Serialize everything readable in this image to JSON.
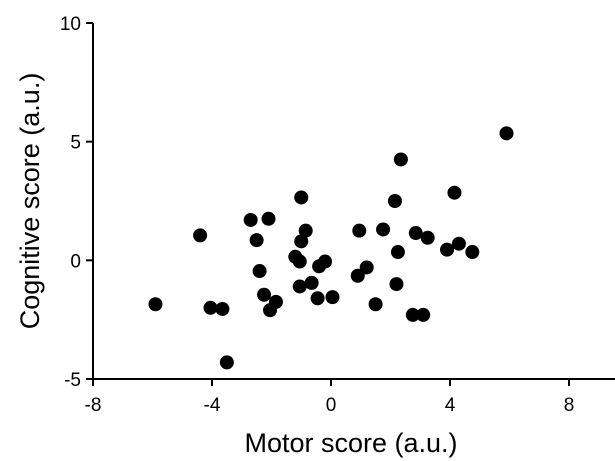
{
  "chart_data": {
    "type": "scatter",
    "title": "",
    "xlabel": "Motor score (a.u.)",
    "ylabel": "Cognitive score (a.u.)",
    "xlim": [
      -8,
      8
    ],
    "ylim": [
      -5,
      10
    ],
    "xticks": [
      -8,
      -4,
      0,
      4,
      8
    ],
    "yticks": [
      -5,
      0,
      5,
      10
    ],
    "grid": false,
    "marker_color": "#000000",
    "series": [
      {
        "points": [
          [
            5.9,
            5.35
          ],
          [
            2.35,
            4.25
          ],
          [
            4.15,
            2.85
          ],
          [
            -1.0,
            2.65
          ],
          [
            2.15,
            2.5
          ],
          [
            -2.7,
            1.7
          ],
          [
            -2.1,
            1.75
          ],
          [
            -0.85,
            1.25
          ],
          [
            0.95,
            1.25
          ],
          [
            1.75,
            1.3
          ],
          [
            2.85,
            1.15
          ],
          [
            -4.4,
            1.05
          ],
          [
            -2.5,
            0.85
          ],
          [
            -1.0,
            0.8
          ],
          [
            3.25,
            0.95
          ],
          [
            4.3,
            0.7
          ],
          [
            3.9,
            0.45
          ],
          [
            4.75,
            0.35
          ],
          [
            2.25,
            0.35
          ],
          [
            -1.2,
            0.15
          ],
          [
            -1.05,
            -0.05
          ],
          [
            -0.2,
            -0.05
          ],
          [
            -0.4,
            -0.25
          ],
          [
            1.2,
            -0.3
          ],
          [
            -2.4,
            -0.45
          ],
          [
            0.9,
            -0.65
          ],
          [
            -0.65,
            -0.95
          ],
          [
            2.2,
            -1.0
          ],
          [
            -1.05,
            -1.1
          ],
          [
            -2.25,
            -1.45
          ],
          [
            0.05,
            -1.55
          ],
          [
            -0.45,
            -1.6
          ],
          [
            -1.85,
            -1.75
          ],
          [
            -5.9,
            -1.85
          ],
          [
            1.5,
            -1.85
          ],
          [
            -4.05,
            -2.0
          ],
          [
            -3.65,
            -2.05
          ],
          [
            -2.05,
            -2.1
          ],
          [
            2.75,
            -2.3
          ],
          [
            3.1,
            -2.3
          ],
          [
            -3.5,
            -4.3
          ]
        ]
      }
    ]
  }
}
